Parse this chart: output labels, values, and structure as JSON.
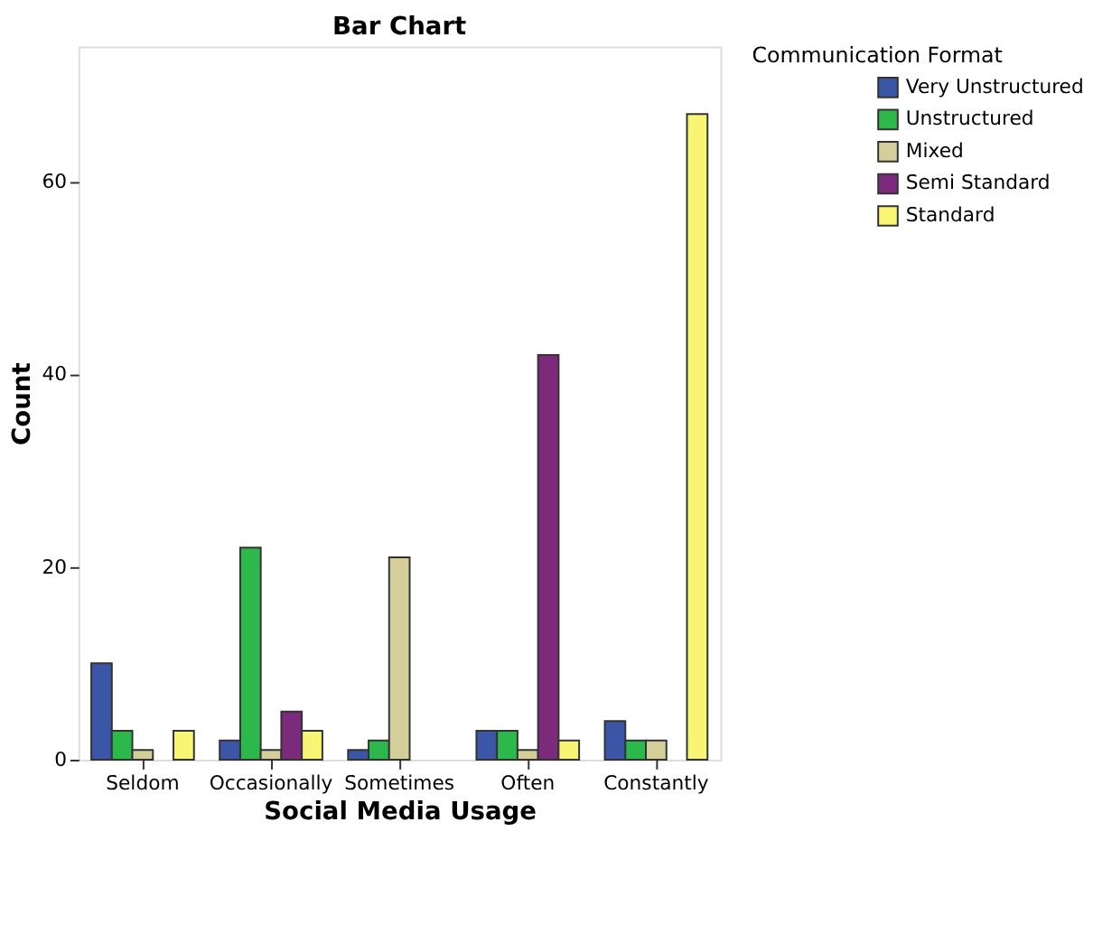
{
  "chart_data": {
    "type": "bar",
    "title": "Bar Chart",
    "xlabel": "Social Media Usage",
    "ylabel": "Count",
    "legend_title": "Communication Format",
    "categories": [
      "Seldom",
      "Occasionally",
      "Sometimes",
      "Often",
      "Constantly"
    ],
    "series": [
      {
        "name": "Very Unstructured",
        "color": "#3b56a6",
        "values": [
          10,
          2,
          1,
          3,
          4
        ]
      },
      {
        "name": "Unstructured",
        "color": "#2db84b",
        "values": [
          3,
          22,
          2,
          3,
          2
        ]
      },
      {
        "name": "Mixed",
        "color": "#d4cf9a",
        "values": [
          1,
          1,
          21,
          1,
          2
        ]
      },
      {
        "name": "Semi Standard",
        "color": "#7b2a7c",
        "values": [
          null,
          5,
          null,
          42,
          null
        ]
      },
      {
        "name": "Standard",
        "color": "#f8f575",
        "values": [
          3,
          3,
          null,
          2,
          67
        ]
      }
    ],
    "ylim": [
      0,
      74
    ],
    "yticks": [
      0,
      20,
      40,
      60
    ],
    "grid": false,
    "legend": "top right"
  }
}
